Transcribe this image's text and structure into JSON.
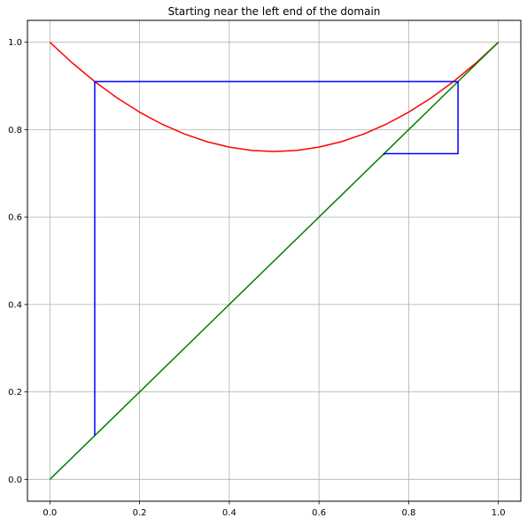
{
  "chart_data": {
    "type": "line",
    "title": "Starting near the left end of the domain",
    "xlabel": "",
    "ylabel": "",
    "xlim": [
      -0.05,
      1.05
    ],
    "ylim": [
      -0.05,
      1.05
    ],
    "grid": true,
    "x_ticks": [
      0.0,
      0.2,
      0.4,
      0.6,
      0.8,
      1.0
    ],
    "y_ticks": [
      0.0,
      0.2,
      0.4,
      0.6,
      0.8,
      1.0
    ],
    "x_tick_labels": [
      "0.0",
      "0.2",
      "0.4",
      "0.6",
      "0.8",
      "1.0"
    ],
    "y_tick_labels": [
      "0.0",
      "0.2",
      "0.4",
      "0.6",
      "0.8",
      "1.0"
    ],
    "series": [
      {
        "color": "#ff0000",
        "x": [
          0.0,
          0.05,
          0.1,
          0.15,
          0.2,
          0.25,
          0.3,
          0.35,
          0.4,
          0.45,
          0.5,
          0.55,
          0.6,
          0.65,
          0.7,
          0.75,
          0.8,
          0.85,
          0.9,
          0.95,
          1.0
        ],
        "y": [
          1.0,
          0.9525,
          0.91,
          0.8725,
          0.84,
          0.8125,
          0.79,
          0.7725,
          0.76,
          0.7525,
          0.75,
          0.7525,
          0.76,
          0.7725,
          0.79,
          0.8125,
          0.84,
          0.8725,
          0.91,
          0.9525,
          1.0
        ]
      },
      {
        "color": "#008000",
        "x": [
          0.0,
          1.0
        ],
        "y": [
          0.0,
          1.0
        ]
      },
      {
        "color": "#0000ff",
        "x": [
          0.1,
          0.1,
          0.91,
          0.91,
          0.745,
          0.745
        ],
        "y": [
          0.1,
          0.91,
          0.91,
          0.745,
          0.745,
          0.742
        ]
      }
    ]
  }
}
